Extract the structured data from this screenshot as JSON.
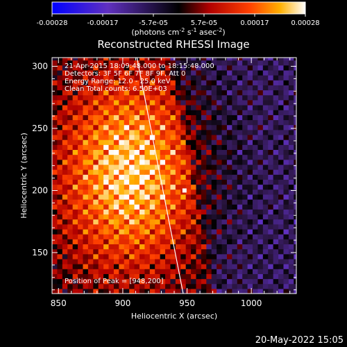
{
  "chart_data": {
    "type": "heatmap",
    "title": "Reconstructed RHESSI Image",
    "xlabel": "Heliocentric X (arcsec)",
    "ylabel": "Heliocentric Y (arcsec)",
    "xlim": [
      845,
      1035
    ],
    "ylim": [
      117,
      307
    ],
    "xticks": [
      850,
      900,
      950,
      1000
    ],
    "yticks": [
      150,
      200,
      250,
      300
    ],
    "colorbar": {
      "range": [
        -0.00028,
        0.00028
      ],
      "tick_labels": [
        "-0.00028",
        "-0.00017",
        "-5.7e-05",
        "5.7e-05",
        "0.00017",
        "0.00028"
      ],
      "unit_parts": [
        "(photons cm",
        "-2",
        " s",
        "-1",
        " asec",
        "-2",
        ")"
      ]
    },
    "annotations": [
      "21-Apr-2015 18:09:48.000 to 18:15:48.000",
      "Detectors: 3F 5F 6F 7F 8F 9F, Att 0",
      "Energy Range: 12.0 - 25.0 keV",
      "Clean    Total counts: 6.50E+03"
    ],
    "peak_label": "Position of Peak = [948,200]",
    "peak": [
      948,
      200
    ],
    "limb_line": [
      [
        911,
        307
      ],
      [
        947,
        117
      ]
    ],
    "colors": {
      "background": "#000000",
      "text": "#ffffff",
      "colormap": [
        "#0000ff",
        "#5030b0",
        "#7a3c8a",
        "#000000",
        "#b00000",
        "#ff4000",
        "#ffa000",
        "#ffff60",
        "#ffffff"
      ]
    }
  },
  "footer_date": "20-May-2022 15:05"
}
